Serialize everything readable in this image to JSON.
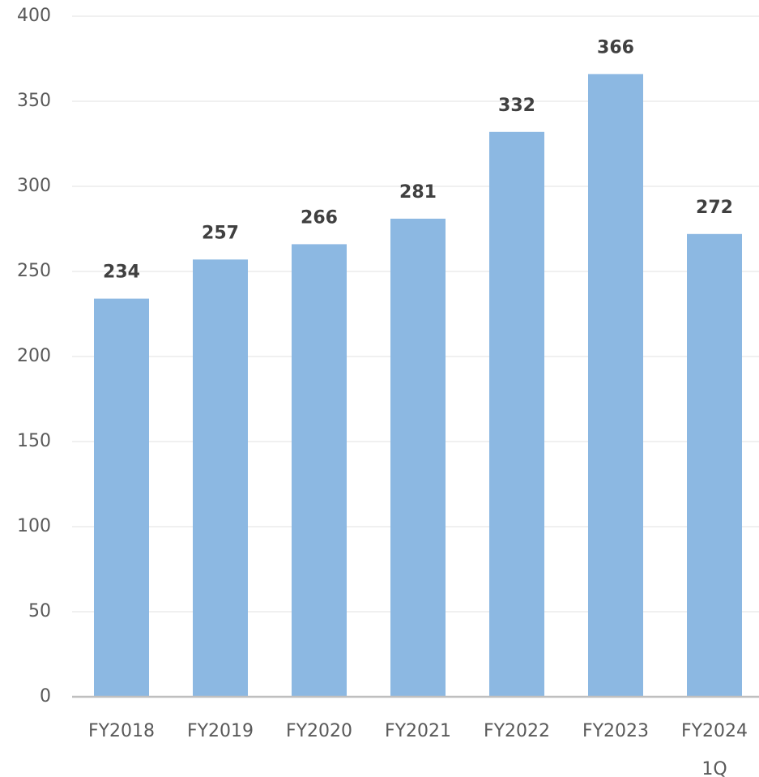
{
  "chart_data": {
    "type": "bar",
    "categories": [
      "FY2018",
      "FY2019",
      "FY2020",
      "FY2021",
      "FY2022",
      "FY2023",
      "FY2024\n1Q"
    ],
    "values": [
      234,
      257,
      266,
      281,
      332,
      366,
      272
    ],
    "color": "#8cb8e2",
    "ylim": [
      0,
      400
    ],
    "yticks": [
      0,
      50,
      100,
      150,
      200,
      250,
      300,
      350,
      400
    ],
    "grid": true
  }
}
